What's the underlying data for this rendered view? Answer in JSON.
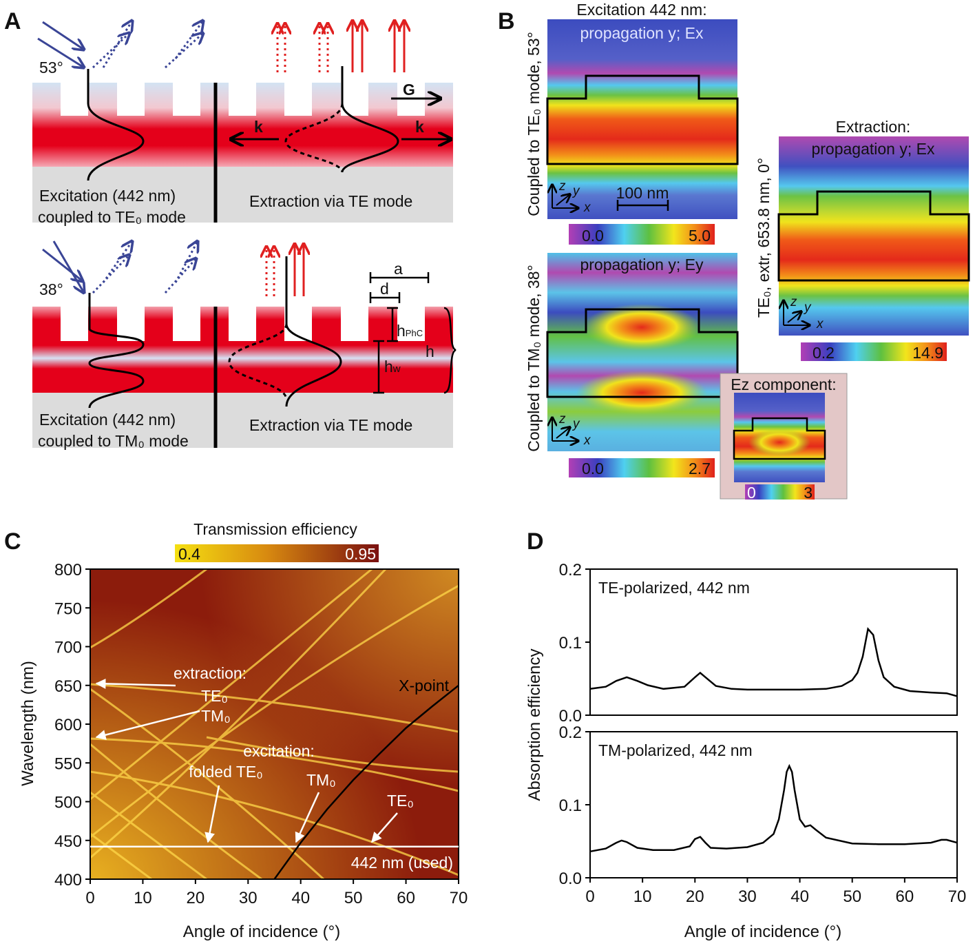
{
  "panel_labels": {
    "a": "A",
    "b": "B",
    "c": "C",
    "d": "D"
  },
  "panel_a": {
    "top": {
      "angle": "53°",
      "g": "G",
      "k_left": "k",
      "k_right": "k",
      "excitation": [
        "Excitation (442 nm)",
        "coupled to TE₀ mode"
      ],
      "extraction": "Extraction via TE mode"
    },
    "bottom": {
      "angle": "38°",
      "a": "a",
      "d": "d",
      "h_phc": {
        "main": "h",
        "sub": "PhC"
      },
      "h_w": {
        "main": "h",
        "sub": "w"
      },
      "h": "h",
      "excitation": [
        "Excitation (442 nm)",
        "coupled to TM₀ mode"
      ],
      "extraction": "Extraction via TE mode"
    }
  },
  "panel_b": {
    "te_map": {
      "title": "Excitation 442 nm:",
      "field": "propagation y; Ex",
      "side_label": "Coupled to TE₀ mode, 53°",
      "scale_bar": "100 nm",
      "colorbar": [
        "0.0",
        "5.0"
      ]
    },
    "tm_map": {
      "field": "propagation y; Ey",
      "side_label": "Coupled to TM₀ mode, 38°",
      "colorbar": [
        "0.0",
        "2.7"
      ]
    },
    "extraction_map": {
      "title": "Extraction:",
      "field": "propagation y; Ex",
      "side_label": "TE₀, extr, 653.8 nm, 0°",
      "colorbar": [
        "0.2",
        "14.9"
      ]
    },
    "ez_inset": {
      "title": "Ez component:",
      "colorbar": [
        "0",
        "3"
      ]
    },
    "axes": [
      "z",
      "y",
      "x"
    ]
  },
  "chart_data": [
    {
      "type": "heatmap",
      "colorbar_label": "Transmission efficiency",
      "clim": [
        0.4,
        0.95
      ],
      "xlabel": "Angle of incidence (°)",
      "ylabel": "Wavelength (nm)",
      "xlim": [
        0,
        70
      ],
      "ylim": [
        400,
        800
      ],
      "xticks": [
        0,
        10,
        20,
        30,
        40,
        50,
        60,
        70
      ],
      "yticks": [
        400,
        450,
        500,
        550,
        600,
        650,
        700,
        750,
        800
      ],
      "lines": [
        {
          "name": "X-point",
          "color": "#000000",
          "x": [
            35,
            40,
            45,
            50,
            55,
            60,
            65,
            70
          ],
          "values": [
            400,
            447,
            490,
            528,
            562,
            595,
            623,
            650
          ]
        }
      ],
      "hlines": [
        {
          "value": 442,
          "label": "442 nm (used)",
          "color": "#ffffff"
        }
      ],
      "annotations": [
        "extraction:",
        "TE₀",
        "TM₀",
        "excitation:",
        "folded TE₀",
        "TM₀",
        "TE₀"
      ]
    },
    {
      "type": "line",
      "xlabel": "Angle of incidence (°)",
      "ylabel": "Absorption efficiency",
      "xlim": [
        0,
        70
      ],
      "xticks": [
        0,
        10,
        20,
        30,
        40,
        50,
        60,
        70
      ],
      "panels": [
        {
          "title": "TE-polarized, 442 nm",
          "ylim": [
            0,
            0.2
          ],
          "yticks": [
            {
              "value": 0,
              "label": "0.0"
            },
            0.1,
            0.2
          ],
          "series": [
            {
              "color": "#000000",
              "x": [
                0,
                3,
                5,
                7,
                9,
                11,
                14,
                18,
                20,
                21,
                22,
                24,
                27,
                30,
                35,
                40,
                45,
                48,
                50,
                51,
                52,
                53,
                54,
                55,
                56,
                58,
                61,
                65,
                68,
                70
              ],
              "values": [
                0.036,
                0.039,
                0.047,
                0.052,
                0.047,
                0.041,
                0.036,
                0.039,
                0.052,
                0.058,
                0.052,
                0.04,
                0.036,
                0.035,
                0.035,
                0.035,
                0.036,
                0.04,
                0.048,
                0.058,
                0.08,
                0.118,
                0.11,
                0.075,
                0.052,
                0.039,
                0.033,
                0.031,
                0.03,
                0.026
              ]
            }
          ]
        },
        {
          "title": "TM-polarized, 442 nm",
          "ylim": [
            0,
            0.2
          ],
          "yticks": [
            {
              "value": 0,
              "label": "0.0"
            },
            0.1,
            0.2
          ],
          "series": [
            {
              "color": "#000000",
              "x": [
                0,
                3,
                5,
                6,
                7,
                9,
                12,
                16,
                19,
                20,
                21,
                22,
                23,
                26,
                30,
                33,
                35,
                36,
                37,
                37.5,
                38,
                38.5,
                39,
                40,
                41,
                42,
                43,
                45,
                50,
                55,
                60,
                65,
                67,
                68,
                70
              ],
              "values": [
                0.036,
                0.04,
                0.048,
                0.051,
                0.049,
                0.041,
                0.038,
                0.038,
                0.043,
                0.053,
                0.056,
                0.048,
                0.041,
                0.04,
                0.042,
                0.048,
                0.06,
                0.08,
                0.12,
                0.145,
                0.153,
                0.145,
                0.12,
                0.08,
                0.07,
                0.072,
                0.066,
                0.055,
                0.047,
                0.046,
                0.046,
                0.048,
                0.052,
                0.052,
                0.048
              ]
            }
          ]
        }
      ]
    }
  ]
}
